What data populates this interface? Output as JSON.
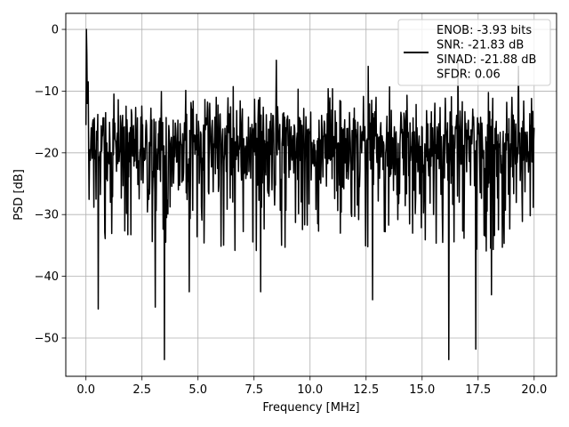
{
  "chart_data": {
    "type": "line",
    "xlabel": "Frequency [MHz]",
    "ylabel": "PSD [dB]",
    "xlim": [
      -0.9,
      21.0
    ],
    "ylim": [
      -56.2,
      2.6
    ],
    "x_ticks": [
      0.0,
      2.5,
      5.0,
      7.5,
      10.0,
      12.5,
      15.0,
      17.5,
      20.0
    ],
    "x_tick_labels": [
      "0.0",
      "2.5",
      "5.0",
      "7.5",
      "10.0",
      "12.5",
      "15.0",
      "17.5",
      "20.0"
    ],
    "y_ticks": [
      0,
      -10,
      -20,
      -30,
      -40,
      -50
    ],
    "y_tick_labels": [
      "0",
      "−10",
      "−20",
      "−30",
      "−40",
      "−50"
    ],
    "grid": true,
    "legend_position": "top-right",
    "series": [
      {
        "name": "ENOB: -3.93 bits\nSNR: -21.83 dB\nSINAD: -21.88 dB\nSFDR: 0.06",
        "color": "#000000",
        "x_range": [
          0.0,
          20.0
        ],
        "n_points": 1024,
        "baseline_db": -20.0,
        "dc_peak": [
          {
            "x": 0.0,
            "y": -15.5
          },
          {
            "x": 0.02,
            "y": 0.0
          },
          {
            "x": 0.04,
            "y": -4.0
          },
          {
            "x": 0.06,
            "y": -12.0
          },
          {
            "x": 0.1,
            "y": -8.5
          }
        ],
        "notable_minima": [
          {
            "x": 0.55,
            "y": -45.3
          },
          {
            "x": 3.1,
            "y": -45.0
          },
          {
            "x": 3.5,
            "y": -53.5
          },
          {
            "x": 4.6,
            "y": -42.5
          },
          {
            "x": 7.8,
            "y": -42.5
          },
          {
            "x": 12.8,
            "y": -43.8
          },
          {
            "x": 16.2,
            "y": -53.5
          },
          {
            "x": 17.4,
            "y": -51.8
          },
          {
            "x": 18.1,
            "y": -43.0
          }
        ],
        "notable_maxima": [
          {
            "x": 8.5,
            "y": -5.0
          },
          {
            "x": 12.6,
            "y": -6.0
          },
          {
            "x": 16.6,
            "y": -5.5
          },
          {
            "x": 19.3,
            "y": -6.0
          }
        ]
      }
    ],
    "legend": {
      "lines": [
        "ENOB: -3.93 bits",
        "SNR: -21.83 dB",
        "SINAD: -21.88 dB",
        "SFDR: 0.06"
      ]
    }
  }
}
